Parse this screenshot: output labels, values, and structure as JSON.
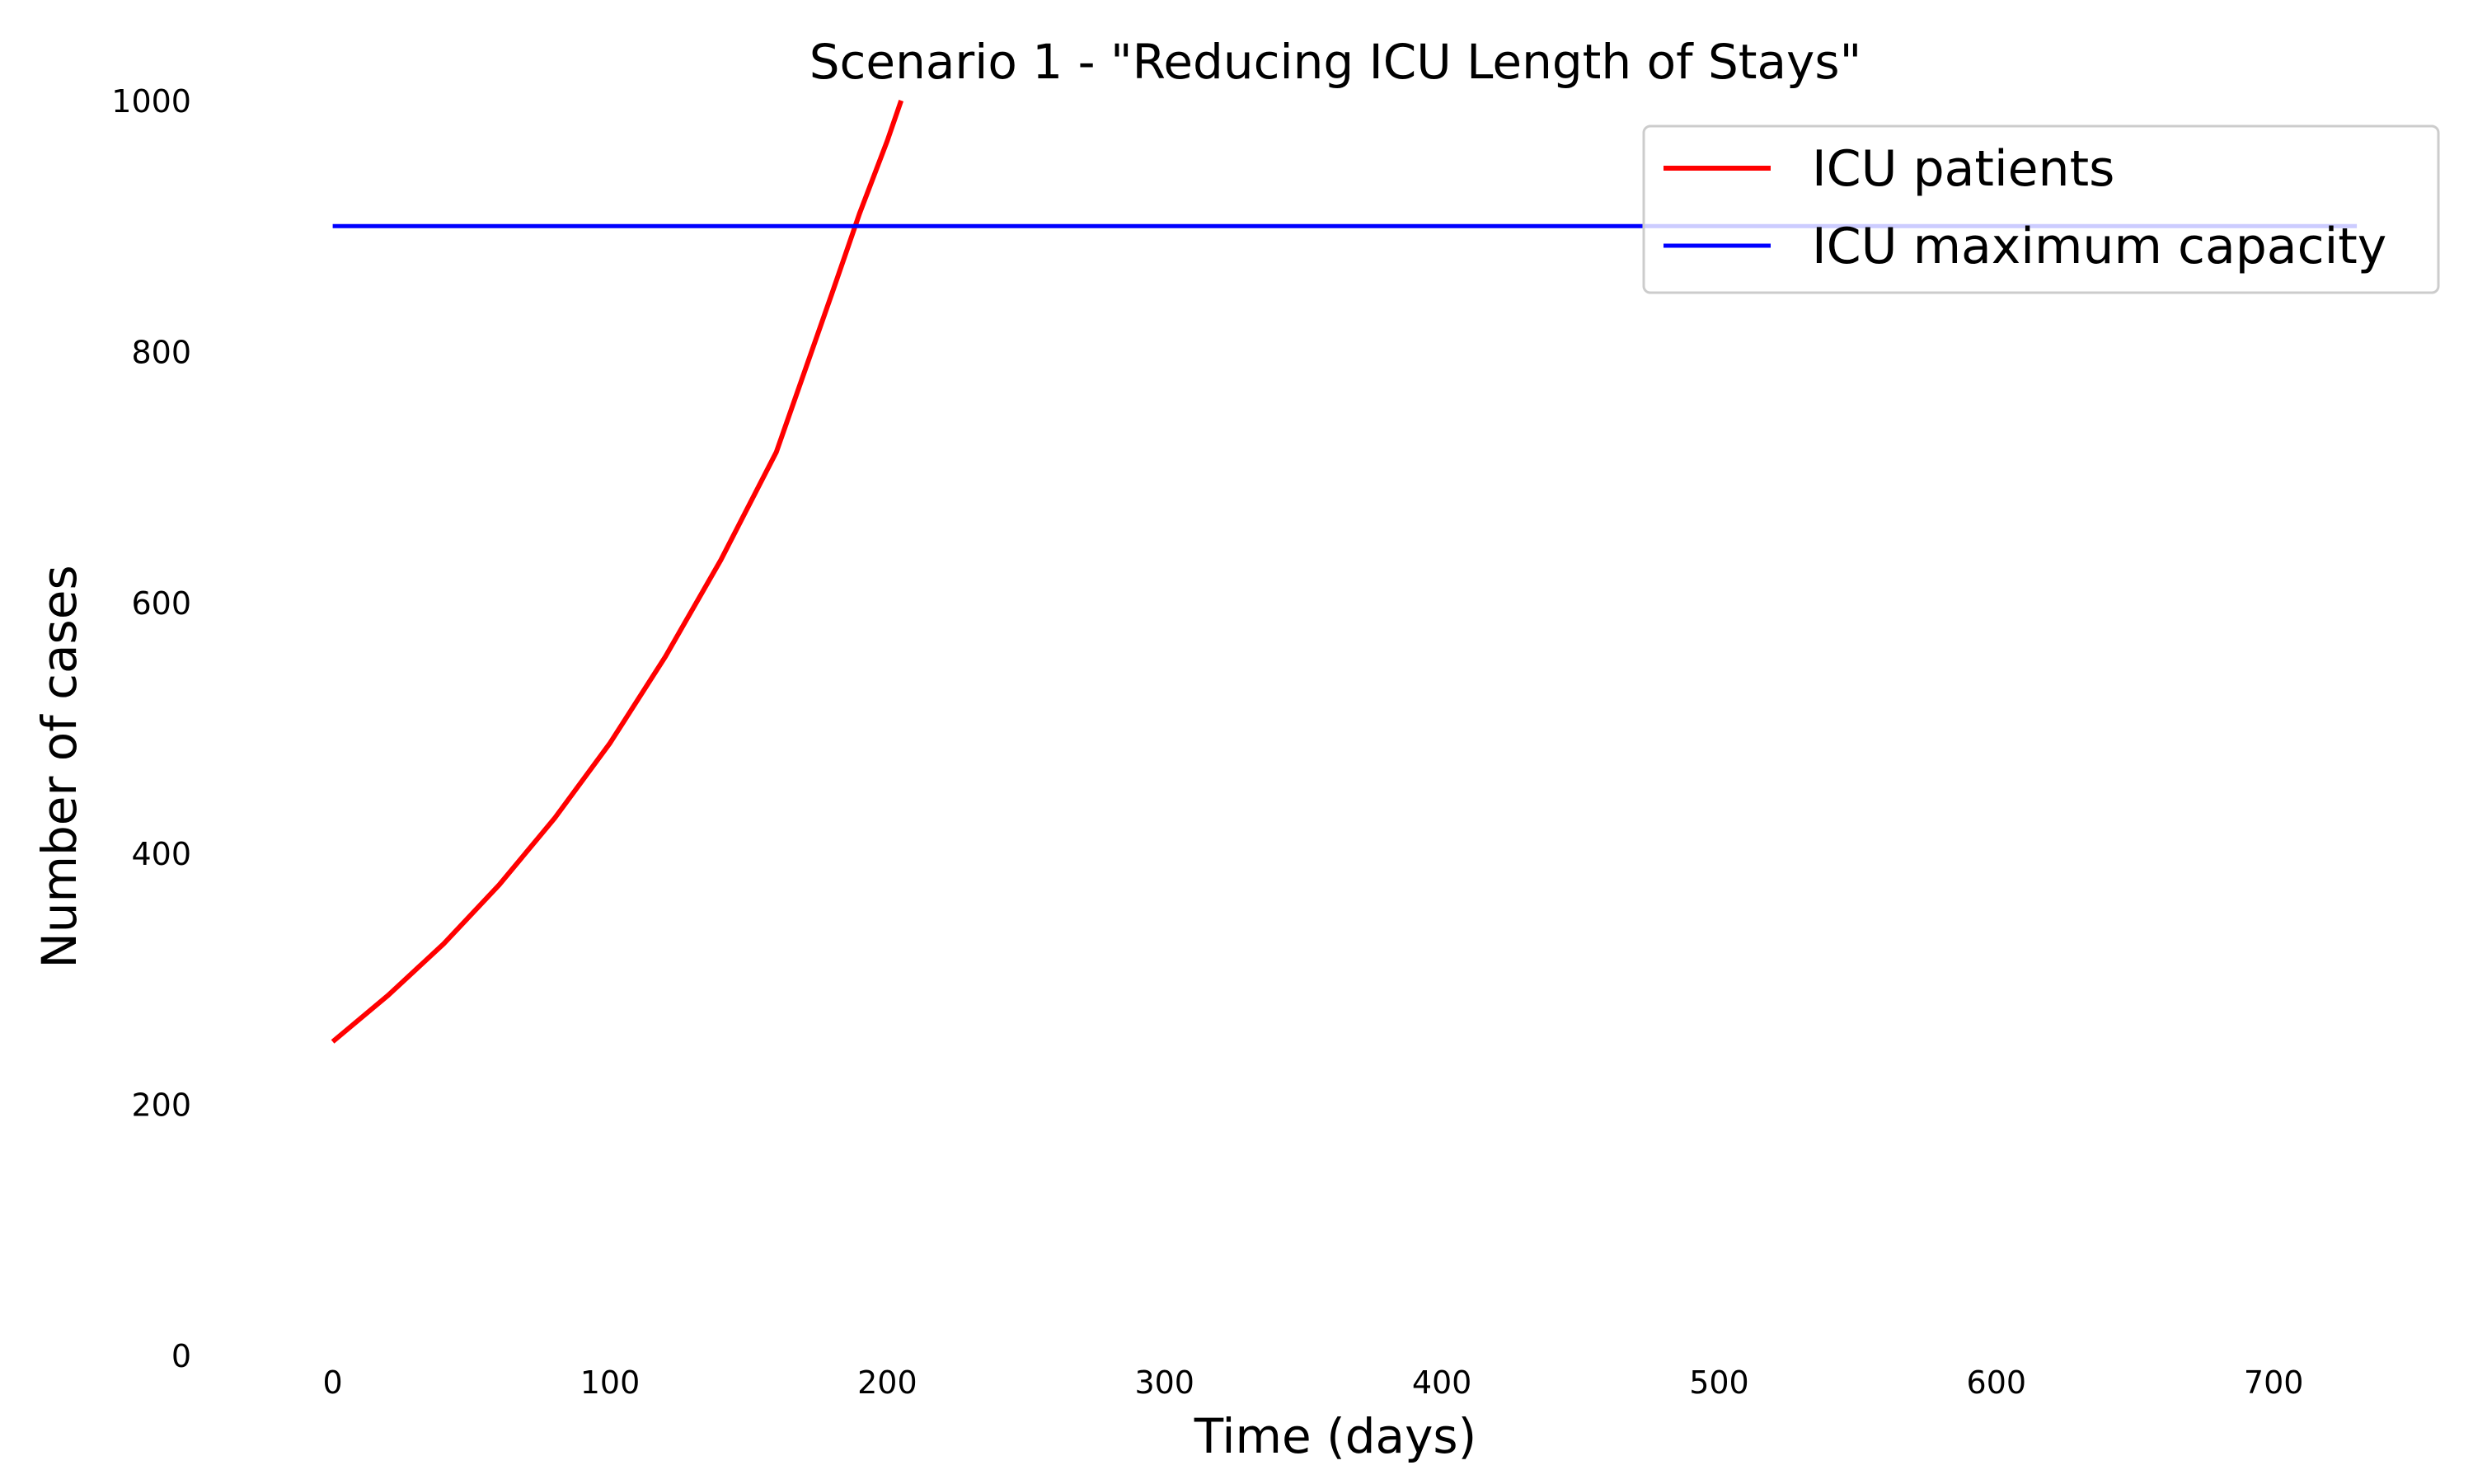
{
  "chart_data": {
    "type": "line",
    "title": "Scenario 1 - \"Reducing ICU Length of Stays\"",
    "xlabel": "Time (days)",
    "ylabel": "Number of cases",
    "xlim": [
      -10,
      760
    ],
    "ylim": [
      0,
      1000
    ],
    "xticks": [
      0,
      100,
      200,
      300,
      400,
      500,
      600,
      700
    ],
    "xtick_labels": [
      "0",
      "100",
      "200",
      "300",
      "400",
      "500",
      "600",
      "700"
    ],
    "yticks": [
      0,
      200,
      400,
      600,
      800,
      1000
    ],
    "ytick_labels": [
      "0",
      "200",
      "400",
      "600",
      "800",
      "1000"
    ],
    "grid": false,
    "legend_position": "top-right",
    "series": [
      {
        "name": "ICU patients",
        "color": "#ff0000",
        "x": [
          0,
          20,
          40,
          60,
          80,
          100,
          120,
          140,
          160,
          180,
          190,
          200,
          205
        ],
        "y": [
          250,
          287,
          328,
          375,
          428,
          488,
          557,
          634,
          720,
          846,
          910,
          968,
          1000
        ]
      },
      {
        "name": "ICU maximum capacity",
        "color": "#0000ff",
        "x": [
          0,
          730
        ],
        "y": [
          900,
          900
        ]
      }
    ]
  }
}
